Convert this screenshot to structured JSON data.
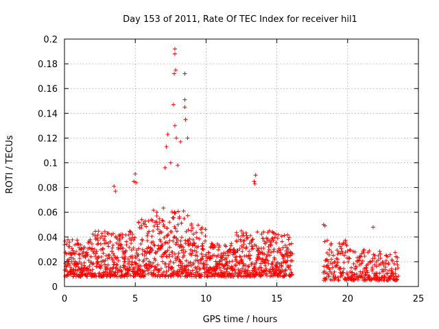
{
  "chart_data": {
    "type": "scatter",
    "title": "Day 153 of 2011, Rate Of TEC Index for receiver hil1",
    "xlabel": "GPS time / hours",
    "ylabel": "ROTI / TECUs",
    "xlim": [
      0,
      25
    ],
    "ylim": [
      0,
      0.2
    ],
    "x_ticks": [
      0,
      5,
      10,
      15,
      20,
      25
    ],
    "y_ticks": [
      0,
      0.02,
      0.04,
      0.06,
      0.08,
      0.1,
      0.12,
      0.14,
      0.16,
      0.18,
      0.2
    ],
    "grid": true,
    "marker": "+",
    "color": "#ff0000",
    "series": [
      {
        "name": "ROTI",
        "segments": [
          {
            "start": 0.0,
            "end": 16.1,
            "step": 0.03,
            "seed": 7
          },
          {
            "start": 18.3,
            "end": 23.6,
            "step": 0.045,
            "seed": 19
          }
        ],
        "outliers": [
          [
            7.8,
            0.192
          ],
          [
            7.8,
            0.188
          ],
          [
            7.85,
            0.175
          ],
          [
            7.75,
            0.172
          ],
          [
            8.5,
            0.172
          ],
          [
            7.7,
            0.147
          ],
          [
            8.5,
            0.151
          ],
          [
            8.5,
            0.145
          ],
          [
            8.55,
            0.135
          ],
          [
            7.8,
            0.13
          ],
          [
            7.9,
            0.12
          ],
          [
            7.3,
            0.123
          ],
          [
            8.2,
            0.117
          ],
          [
            7.2,
            0.113
          ],
          [
            8.7,
            0.12
          ],
          [
            7.5,
            0.1
          ],
          [
            7.1,
            0.096
          ],
          [
            8.0,
            0.098
          ],
          [
            5.0,
            0.091
          ],
          [
            4.9,
            0.085
          ],
          [
            5.05,
            0.084
          ],
          [
            13.5,
            0.09
          ],
          [
            13.4,
            0.085
          ],
          [
            13.45,
            0.083
          ],
          [
            3.5,
            0.081
          ],
          [
            3.6,
            0.077
          ],
          [
            18.3,
            0.05
          ],
          [
            18.4,
            0.049
          ],
          [
            21.8,
            0.048
          ]
        ]
      }
    ]
  }
}
